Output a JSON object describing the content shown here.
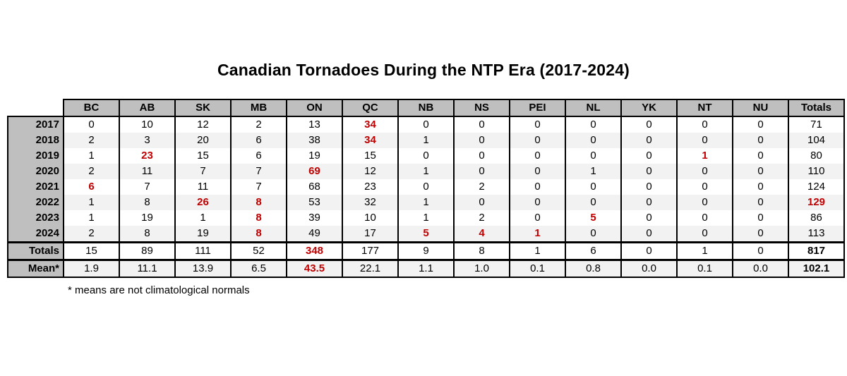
{
  "title": "Canadian Tornadoes During the NTP Era (2017-2024)",
  "footnote": "* means are not climatological normals",
  "colors": {
    "header_bg": "#bfbfbf",
    "stripe_bg": "#f2f2f2",
    "highlight_red": "#c00000",
    "border": "#000000"
  },
  "chart_data": {
    "type": "table",
    "title": "Canadian Tornadoes During the NTP Era (2017-2024)",
    "columns": [
      "BC",
      "AB",
      "SK",
      "MB",
      "ON",
      "QC",
      "NB",
      "NS",
      "PEI",
      "NL",
      "YK",
      "NT",
      "NU",
      "Totals"
    ],
    "rows": [
      {
        "label": "2017",
        "type": "year",
        "values": [
          "0",
          "10",
          "12",
          "2",
          "13",
          "34",
          "0",
          "0",
          "0",
          "0",
          "0",
          "0",
          "0",
          "71"
        ],
        "red_cols": [
          5
        ],
        "bold_cols": []
      },
      {
        "label": "2018",
        "type": "year",
        "values": [
          "2",
          "3",
          "20",
          "6",
          "38",
          "34",
          "1",
          "0",
          "0",
          "0",
          "0",
          "0",
          "0",
          "104"
        ],
        "red_cols": [
          5
        ],
        "bold_cols": []
      },
      {
        "label": "2019",
        "type": "year",
        "values": [
          "1",
          "23",
          "15",
          "6",
          "19",
          "15",
          "0",
          "0",
          "0",
          "0",
          "0",
          "1",
          "0",
          "80"
        ],
        "red_cols": [
          1,
          11
        ],
        "bold_cols": []
      },
      {
        "label": "2020",
        "type": "year",
        "values": [
          "2",
          "11",
          "7",
          "7",
          "69",
          "12",
          "1",
          "0",
          "0",
          "1",
          "0",
          "0",
          "0",
          "110"
        ],
        "red_cols": [
          4
        ],
        "bold_cols": []
      },
      {
        "label": "2021",
        "type": "year",
        "values": [
          "6",
          "7",
          "11",
          "7",
          "68",
          "23",
          "0",
          "2",
          "0",
          "0",
          "0",
          "0",
          "0",
          "124"
        ],
        "red_cols": [
          0
        ],
        "bold_cols": []
      },
      {
        "label": "2022",
        "type": "year",
        "values": [
          "1",
          "8",
          "26",
          "8",
          "53",
          "32",
          "1",
          "0",
          "0",
          "0",
          "0",
          "0",
          "0",
          "129"
        ],
        "red_cols": [
          2,
          3,
          13
        ],
        "bold_cols": []
      },
      {
        "label": "2023",
        "type": "year",
        "values": [
          "1",
          "19",
          "1",
          "8",
          "39",
          "10",
          "1",
          "2",
          "0",
          "5",
          "0",
          "0",
          "0",
          "86"
        ],
        "red_cols": [
          3,
          9
        ],
        "bold_cols": []
      },
      {
        "label": "2024",
        "type": "year",
        "values": [
          "2",
          "8",
          "19",
          "8",
          "49",
          "17",
          "5",
          "4",
          "1",
          "0",
          "0",
          "0",
          "0",
          "113"
        ],
        "red_cols": [
          3,
          6,
          7,
          8
        ],
        "bold_cols": []
      },
      {
        "label": "Totals",
        "type": "totals",
        "values": [
          "15",
          "89",
          "111",
          "52",
          "348",
          "177",
          "9",
          "8",
          "1",
          "6",
          "0",
          "1",
          "0",
          "817"
        ],
        "red_cols": [
          4
        ],
        "bold_cols": [
          13
        ]
      },
      {
        "label": "Mean*",
        "type": "mean",
        "values": [
          "1.9",
          "11.1",
          "13.9",
          "6.5",
          "43.5",
          "22.1",
          "1.1",
          "1.0",
          "0.1",
          "0.8",
          "0.0",
          "0.1",
          "0.0",
          "102.1"
        ],
        "red_cols": [
          4
        ],
        "bold_cols": [
          13
        ]
      }
    ]
  }
}
